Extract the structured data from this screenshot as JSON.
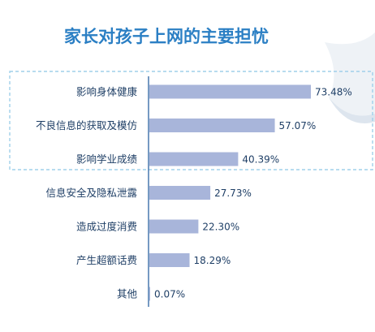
{
  "chart_data": {
    "type": "bar",
    "orientation": "horizontal",
    "title": "家长对孩子上网的主要担忧",
    "categories": [
      "影响身体健康",
      "不良信息的获取及模仿",
      "影响学业成绩",
      "信息安全及隐私泄露",
      "造成过度消费",
      "产生超额话费",
      "其他"
    ],
    "values": [
      73.48,
      57.07,
      40.39,
      27.73,
      22.3,
      18.29,
      0.07
    ],
    "value_labels": [
      "73.48%",
      "57.07%",
      "40.39%",
      "27.73%",
      "22.30%",
      "18.29%",
      "0.07%"
    ],
    "unit": "%",
    "xlim": [
      0,
      73.48
    ],
    "highlighted_categories": [
      "影响身体健康",
      "不良信息的获取及模仿",
      "影响学业成绩"
    ],
    "bar_color": "#a8b5da",
    "title_color": "#2b7fc4",
    "label_color": "#1f3f66",
    "highlight_border_color": "#9fd0ea",
    "grid": false
  }
}
